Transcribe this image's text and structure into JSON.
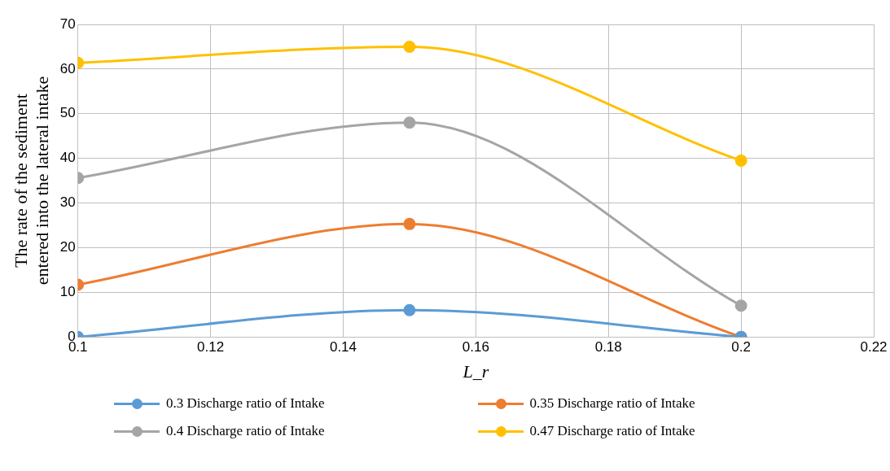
{
  "chart_data": {
    "type": "line",
    "xlabel": "L_r",
    "ylabel": "The rate of the sediment entered into the lateral intake",
    "x": [
      0.1,
      0.15,
      0.2
    ],
    "series": [
      {
        "name": "0.3 Discharge ratio of Intake",
        "color": "#5b9bd5",
        "values": [
          0,
          6,
          0
        ]
      },
      {
        "name": "0.35 Discharge ratio of Intake",
        "color": "#ed7d31",
        "values": [
          11.7,
          25.3,
          0
        ]
      },
      {
        "name": "0.4 Discharge ratio of Intake",
        "color": "#a5a5a5",
        "values": [
          35.6,
          48,
          7
        ]
      },
      {
        "name": "0.47 Discharge ratio of Intake",
        "color": "#ffc000",
        "values": [
          61.4,
          65,
          39.5
        ]
      }
    ],
    "xlim": [
      0.1,
      0.22
    ],
    "xticks": [
      0.1,
      0.12,
      0.14,
      0.16,
      0.18,
      0.2,
      0.22
    ],
    "ylim": [
      0,
      70
    ],
    "yticks": [
      0,
      10,
      20,
      30,
      40,
      50,
      60,
      70
    ],
    "grid": true,
    "legend": "bottom",
    "marker": "circle",
    "line_style": "solid"
  }
}
